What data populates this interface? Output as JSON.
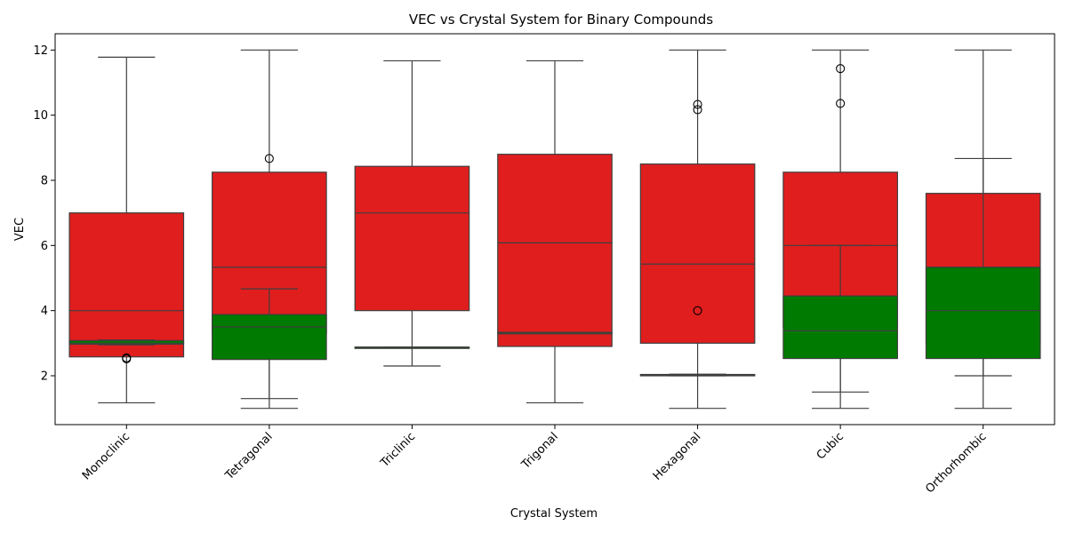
{
  "chart_data": {
    "type": "boxplot",
    "title": "VEC vs Crystal System for Binary Compounds",
    "xlabel": "Crystal System",
    "ylabel": "VEC",
    "ylim": [
      0.5,
      12.5
    ],
    "yticks": [
      2,
      4,
      6,
      8,
      10,
      12
    ],
    "grid": false,
    "legend": "none",
    "categories": [
      "Monoclinic",
      "Tetragonal",
      "Triclinic",
      "Trigonal",
      "Hexagonal",
      "Cubic",
      "Orthorhombic"
    ],
    "series": [
      {
        "color": "#e01e1e",
        "boxes": [
          {
            "whisker_low": 1.17,
            "q1": 2.58,
            "median": 4.0,
            "q3": 7.0,
            "whisker_high": 11.78,
            "outliers": [
              2.55
            ]
          },
          {
            "whisker_low": 1.0,
            "q1": 3.3,
            "median": 5.33,
            "q3": 8.25,
            "whisker_high": 12.0,
            "outliers": [
              8.67
            ]
          },
          {
            "whisker_low": 2.3,
            "q1": 4.0,
            "median": 7.0,
            "q3": 8.43,
            "whisker_high": 11.67,
            "outliers": []
          },
          {
            "whisker_low": 1.17,
            "q1": 2.9,
            "median": 6.08,
            "q3": 8.8,
            "whisker_high": 11.67,
            "outliers": []
          },
          {
            "whisker_low": 1.0,
            "q1": 3.0,
            "median": 5.43,
            "q3": 8.5,
            "whisker_high": 12.0,
            "outliers": [
              10.33,
              10.17,
              4.0
            ]
          },
          {
            "whisker_low": 1.0,
            "q1": 3.5,
            "median": 6.0,
            "q3": 8.25,
            "whisker_high": 12.0,
            "outliers": [
              11.43,
              10.36
            ]
          },
          {
            "whisker_low": 1.0,
            "q1": 3.0,
            "median": 5.33,
            "q3": 7.6,
            "whisker_high": 12.0,
            "outliers": []
          }
        ]
      },
      {
        "color": "#007a00",
        "boxes": [
          {
            "whisker_low": 2.95,
            "q1": 2.97,
            "median": 3.0,
            "q3": 3.08,
            "whisker_high": 3.1,
            "outliers": [
              2.52
            ]
          },
          {
            "whisker_low": 1.3,
            "q1": 2.5,
            "median": 3.5,
            "q3": 3.88,
            "whisker_high": 4.67,
            "outliers": []
          },
          {
            "whisker_low": 2.88,
            "q1": 2.88,
            "median": 2.88,
            "q3": 2.88,
            "whisker_high": 2.88,
            "outliers": []
          },
          {
            "whisker_low": 3.33,
            "q1": 3.33,
            "median": 3.33,
            "q3": 3.33,
            "whisker_high": 3.33,
            "outliers": []
          },
          {
            "whisker_low": 2.0,
            "q1": 2.0,
            "median": 2.02,
            "q3": 2.04,
            "whisker_high": 2.05,
            "outliers": []
          },
          {
            "whisker_low": 1.5,
            "q1": 2.53,
            "median": 3.38,
            "q3": 4.45,
            "whisker_high": 6.0,
            "outliers": []
          },
          {
            "whisker_low": 2.0,
            "q1": 2.53,
            "median": 4.0,
            "q3": 5.33,
            "whisker_high": 8.67,
            "outliers": []
          }
        ]
      }
    ]
  }
}
